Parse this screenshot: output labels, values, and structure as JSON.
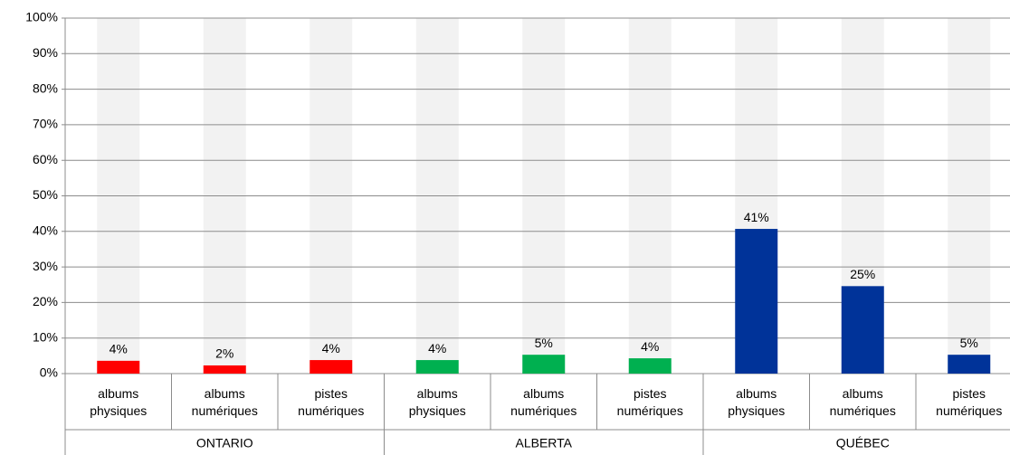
{
  "chart_data": {
    "type": "grouped_bar",
    "background": {
      "value": 100,
      "color": "#f2f2f2"
    },
    "groups": [
      {
        "name": "ONTARIO",
        "color": "#ff0000",
        "categories": [
          "albums physiques",
          "albums numériques",
          "pistes numériques"
        ],
        "values": [
          3.6,
          2.3,
          3.8
        ],
        "value_labels": [
          "4%",
          "2%",
          "4%"
        ]
      },
      {
        "name": "ALBERTA",
        "color": "#00b050",
        "categories": [
          "albums physiques",
          "albums numériques",
          "pistes numériques"
        ],
        "values": [
          3.8,
          5.3,
          4.3
        ],
        "value_labels": [
          "4%",
          "5%",
          "4%"
        ]
      },
      {
        "name": "QUÉBEC",
        "color": "#003399",
        "categories": [
          "albums physiques",
          "albums numériques",
          "pistes numériques"
        ],
        "values": [
          40.7,
          24.6,
          5.3
        ],
        "value_labels": [
          "41%",
          "25%",
          "5%"
        ]
      }
    ],
    "ylim": [
      0,
      100
    ],
    "yticks": [
      {
        "value": 0,
        "label": "0%"
      },
      {
        "value": 10,
        "label": "10%"
      },
      {
        "value": 20,
        "label": "20%"
      },
      {
        "value": 30,
        "label": "30%"
      },
      {
        "value": 40,
        "label": "40%"
      },
      {
        "value": 50,
        "label": "50%"
      },
      {
        "value": 60,
        "label": "60%"
      },
      {
        "value": 70,
        "label": "70%"
      },
      {
        "value": 80,
        "label": "80%"
      },
      {
        "value": 90,
        "label": "90%"
      },
      {
        "value": 100,
        "label": "100%"
      }
    ],
    "grid": true
  }
}
